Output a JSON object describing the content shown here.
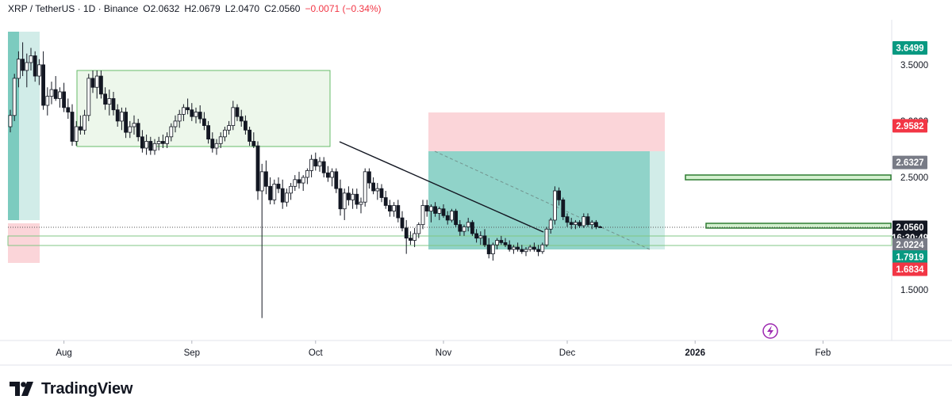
{
  "header": {
    "symbol": "XRP / TetherUS · 1D · Binance",
    "open": "O2.0632",
    "high": "H2.0679",
    "low": "L2.0470",
    "close": "C2.0560",
    "change": "−0.0071 (−0.34%)"
  },
  "brand": {
    "name": "TradingView",
    "icon": "tradingview-logo-icon"
  },
  "extra_icon": "lightning-icon",
  "colors": {
    "up": "#ffffff",
    "down": "#131722",
    "green_tag": "#089981",
    "red_tag": "#f23645",
    "gray_tag": "#787b86",
    "black_tag": "#131722",
    "profit_zone": "#26a69a",
    "loss_zone": "#f7a6ae",
    "range_box": "#4caf50"
  },
  "chart_data": {
    "type": "candlestick",
    "ylim": [
      1.05,
      3.9
    ],
    "x_tick_labels": [
      {
        "label": "Aug",
        "day": 13
      },
      {
        "label": "Sep",
        "day": 44
      },
      {
        "label": "Oct",
        "day": 74
      },
      {
        "label": "Nov",
        "day": 105
      },
      {
        "label": "Dec",
        "day": 135
      },
      {
        "label": "2026",
        "day": 166
      },
      {
        "label": "Feb",
        "day": 197
      }
    ],
    "y_tick_labels": [
      "3.5000",
      "3.0000",
      "2.5000",
      "1.5000"
    ],
    "y_ticks": [
      3.5,
      3.0,
      2.5,
      1.5
    ],
    "price_tags": [
      {
        "label": "3.6499",
        "value": 3.6499,
        "color": "green"
      },
      {
        "label": "2.9582",
        "value": 2.9582,
        "color": "red"
      },
      {
        "label": "2.6327",
        "value": 2.6327,
        "color": "gray"
      },
      {
        "label": "2.0560",
        "value": 2.056,
        "color": "black",
        "sub": "16:30:49"
      },
      {
        "label": "2.0224",
        "value": 1.9,
        "color": "gray"
      },
      {
        "label": "1.7919",
        "value": 1.7919,
        "color": "green"
      },
      {
        "label": "1.6834",
        "value": 1.6834,
        "color": "red"
      }
    ],
    "last_price": 2.056,
    "candles": [
      [
        2.95,
        3.1,
        2.9,
        3.05
      ],
      [
        3.05,
        3.42,
        3.0,
        3.38
      ],
      [
        3.38,
        3.62,
        3.3,
        3.55
      ],
      [
        3.55,
        3.7,
        3.4,
        3.45
      ],
      [
        3.45,
        3.6,
        3.3,
        3.52
      ],
      [
        3.52,
        3.65,
        3.45,
        3.58
      ],
      [
        3.58,
        3.62,
        3.35,
        3.4
      ],
      [
        3.4,
        3.55,
        3.32,
        3.5
      ],
      [
        3.5,
        3.62,
        3.1,
        3.14
      ],
      [
        3.14,
        3.3,
        3.05,
        3.22
      ],
      [
        3.22,
        3.35,
        3.15,
        3.28
      ],
      [
        3.28,
        3.4,
        3.18,
        3.2
      ],
      [
        3.2,
        3.3,
        3.12,
        3.26
      ],
      [
        3.26,
        3.34,
        3.08,
        3.12
      ],
      [
        3.12,
        3.2,
        3.02,
        3.08
      ],
      [
        3.08,
        3.15,
        2.78,
        2.82
      ],
      [
        2.82,
        3.0,
        2.78,
        2.95
      ],
      [
        2.95,
        3.05,
        2.88,
        2.92
      ],
      [
        2.92,
        3.1,
        2.88,
        3.05
      ],
      [
        3.05,
        3.42,
        3.0,
        3.38
      ],
      [
        3.38,
        3.45,
        3.25,
        3.3
      ],
      [
        3.3,
        3.45,
        3.2,
        3.4
      ],
      [
        3.4,
        3.45,
        3.2,
        3.24
      ],
      [
        3.24,
        3.3,
        3.1,
        3.15
      ],
      [
        3.15,
        3.28,
        3.05,
        3.2
      ],
      [
        3.2,
        3.26,
        3.05,
        3.1
      ],
      [
        3.1,
        3.15,
        2.95,
        3.0
      ],
      [
        3.0,
        3.12,
        2.92,
        3.08
      ],
      [
        3.08,
        3.12,
        2.85,
        2.9
      ],
      [
        2.9,
        3.0,
        2.85,
        2.95
      ],
      [
        2.95,
        3.05,
        2.88,
        2.98
      ],
      [
        2.98,
        3.02,
        2.82,
        2.86
      ],
      [
        2.86,
        2.92,
        2.72,
        2.76
      ],
      [
        2.76,
        2.88,
        2.7,
        2.82
      ],
      [
        2.82,
        2.86,
        2.7,
        2.74
      ],
      [
        2.74,
        2.84,
        2.7,
        2.8
      ],
      [
        2.8,
        2.86,
        2.74,
        2.82
      ],
      [
        2.82,
        2.88,
        2.76,
        2.8
      ],
      [
        2.8,
        2.9,
        2.76,
        2.86
      ],
      [
        2.86,
        2.98,
        2.82,
        2.95
      ],
      [
        2.95,
        3.05,
        2.9,
        3.0
      ],
      [
        3.0,
        3.1,
        2.94,
        3.06
      ],
      [
        3.06,
        3.15,
        3.0,
        3.12
      ],
      [
        3.12,
        3.2,
        3.06,
        3.1
      ],
      [
        3.1,
        3.16,
        3.0,
        3.04
      ],
      [
        3.04,
        3.12,
        2.98,
        3.08
      ],
      [
        3.08,
        3.14,
        2.98,
        3.02
      ],
      [
        3.02,
        3.08,
        2.92,
        2.96
      ],
      [
        2.96,
        3.0,
        2.8,
        2.84
      ],
      [
        2.84,
        2.9,
        2.72,
        2.76
      ],
      [
        2.76,
        2.84,
        2.7,
        2.8
      ],
      [
        2.8,
        2.9,
        2.76,
        2.86
      ],
      [
        2.86,
        2.95,
        2.82,
        2.92
      ],
      [
        2.92,
        3.0,
        2.88,
        2.96
      ],
      [
        2.96,
        3.18,
        2.92,
        3.12
      ],
      [
        3.12,
        3.15,
        3.0,
        3.04
      ],
      [
        3.04,
        3.1,
        2.95,
        3.0
      ],
      [
        3.0,
        3.05,
        2.88,
        2.92
      ],
      [
        2.92,
        2.95,
        2.78,
        2.82
      ],
      [
        2.82,
        2.9,
        2.76,
        2.78
      ],
      [
        2.78,
        2.82,
        2.3,
        2.38
      ],
      [
        2.38,
        2.62,
        1.25,
        2.55
      ],
      [
        2.55,
        2.65,
        2.35,
        2.42
      ],
      [
        2.42,
        2.5,
        2.26,
        2.3
      ],
      [
        2.3,
        2.48,
        2.26,
        2.44
      ],
      [
        2.44,
        2.5,
        2.36,
        2.4
      ],
      [
        2.4,
        2.48,
        2.22,
        2.28
      ],
      [
        2.28,
        2.4,
        2.24,
        2.36
      ],
      [
        2.36,
        2.45,
        2.3,
        2.42
      ],
      [
        2.42,
        2.52,
        2.38,
        2.48
      ],
      [
        2.48,
        2.55,
        2.4,
        2.45
      ],
      [
        2.45,
        2.52,
        2.38,
        2.5
      ],
      [
        2.5,
        2.58,
        2.44,
        2.56
      ],
      [
        2.56,
        2.7,
        2.5,
        2.66
      ],
      [
        2.66,
        2.72,
        2.56,
        2.6
      ],
      [
        2.6,
        2.68,
        2.55,
        2.64
      ],
      [
        2.64,
        2.68,
        2.5,
        2.54
      ],
      [
        2.54,
        2.6,
        2.46,
        2.5
      ],
      [
        2.5,
        2.58,
        2.42,
        2.55
      ],
      [
        2.55,
        2.58,
        2.36,
        2.4
      ],
      [
        2.4,
        2.48,
        2.16,
        2.22
      ],
      [
        2.22,
        2.4,
        2.12,
        2.36
      ],
      [
        2.36,
        2.42,
        2.25,
        2.3
      ],
      [
        2.3,
        2.4,
        2.22,
        2.35
      ],
      [
        2.35,
        2.4,
        2.22,
        2.26
      ],
      [
        2.26,
        2.32,
        2.18,
        2.28
      ],
      [
        2.28,
        2.58,
        2.24,
        2.55
      ],
      [
        2.55,
        2.58,
        2.4,
        2.45
      ],
      [
        2.45,
        2.5,
        2.35,
        2.38
      ],
      [
        2.38,
        2.45,
        2.3,
        2.4
      ],
      [
        2.4,
        2.44,
        2.28,
        2.32
      ],
      [
        2.32,
        2.38,
        2.22,
        2.25
      ],
      [
        2.25,
        2.3,
        2.15,
        2.2
      ],
      [
        2.2,
        2.28,
        2.15,
        2.25
      ],
      [
        2.25,
        2.3,
        2.1,
        2.14
      ],
      [
        2.14,
        2.2,
        2.02,
        2.05
      ],
      [
        2.05,
        2.12,
        1.82,
        1.96
      ],
      [
        1.96,
        2.02,
        1.9,
        1.94
      ],
      [
        1.94,
        2.05,
        1.88,
        2.0
      ],
      [
        2.0,
        2.1,
        1.96,
        2.08
      ],
      [
        2.08,
        2.3,
        2.04,
        2.25
      ],
      [
        2.25,
        2.3,
        2.15,
        2.2
      ],
      [
        2.2,
        2.26,
        2.1,
        2.24
      ],
      [
        2.24,
        2.28,
        2.15,
        2.18
      ],
      [
        2.18,
        2.24,
        2.12,
        2.22
      ],
      [
        2.22,
        2.26,
        2.14,
        2.16
      ],
      [
        2.16,
        2.2,
        2.08,
        2.12
      ],
      [
        2.12,
        2.22,
        2.1,
        2.2
      ],
      [
        2.2,
        2.22,
        2.06,
        2.08
      ],
      [
        2.08,
        2.12,
        1.98,
        2.02
      ],
      [
        2.02,
        2.08,
        1.98,
        2.06
      ],
      [
        2.06,
        2.14,
        2.02,
        2.1
      ],
      [
        2.1,
        2.12,
        1.98,
        2.0
      ],
      [
        2.0,
        2.04,
        1.92,
        1.96
      ],
      [
        1.96,
        2.02,
        1.9,
        1.98
      ],
      [
        1.98,
        2.04,
        1.88,
        1.9
      ],
      [
        1.9,
        1.96,
        1.78,
        1.82
      ],
      [
        1.82,
        1.92,
        1.76,
        1.9
      ],
      [
        1.9,
        1.96,
        1.86,
        1.94
      ],
      [
        1.94,
        1.98,
        1.9,
        1.92
      ],
      [
        1.92,
        1.96,
        1.88,
        1.9
      ],
      [
        1.9,
        1.94,
        1.84,
        1.86
      ],
      [
        1.86,
        1.9,
        1.82,
        1.88
      ],
      [
        1.88,
        1.92,
        1.84,
        1.86
      ],
      [
        1.86,
        1.9,
        1.82,
        1.84
      ],
      [
        1.84,
        1.88,
        1.8,
        1.86
      ],
      [
        1.86,
        1.9,
        1.84,
        1.88
      ],
      [
        1.88,
        1.92,
        1.84,
        1.86
      ],
      [
        1.86,
        1.9,
        1.8,
        1.84
      ],
      [
        1.84,
        1.92,
        1.82,
        1.9
      ],
      [
        1.9,
        2.06,
        1.88,
        2.04
      ],
      [
        2.04,
        2.14,
        2.0,
        2.12
      ],
      [
        2.12,
        2.42,
        2.08,
        2.38
      ],
      [
        2.38,
        2.41,
        2.25,
        2.3
      ],
      [
        2.3,
        2.32,
        2.12,
        2.15
      ],
      [
        2.15,
        2.18,
        2.06,
        2.1
      ],
      [
        2.1,
        2.14,
        2.04,
        2.08
      ],
      [
        2.08,
        2.12,
        2.04,
        2.1
      ],
      [
        2.1,
        2.12,
        2.05,
        2.07
      ],
      [
        2.07,
        2.18,
        2.05,
        2.15
      ],
      [
        2.15,
        2.18,
        2.06,
        2.08
      ],
      [
        2.08,
        2.12,
        2.04,
        2.1
      ],
      [
        2.1,
        2.12,
        2.04,
        2.06
      ],
      [
        2.06,
        2.07,
        2.05,
        2.056
      ]
    ]
  }
}
